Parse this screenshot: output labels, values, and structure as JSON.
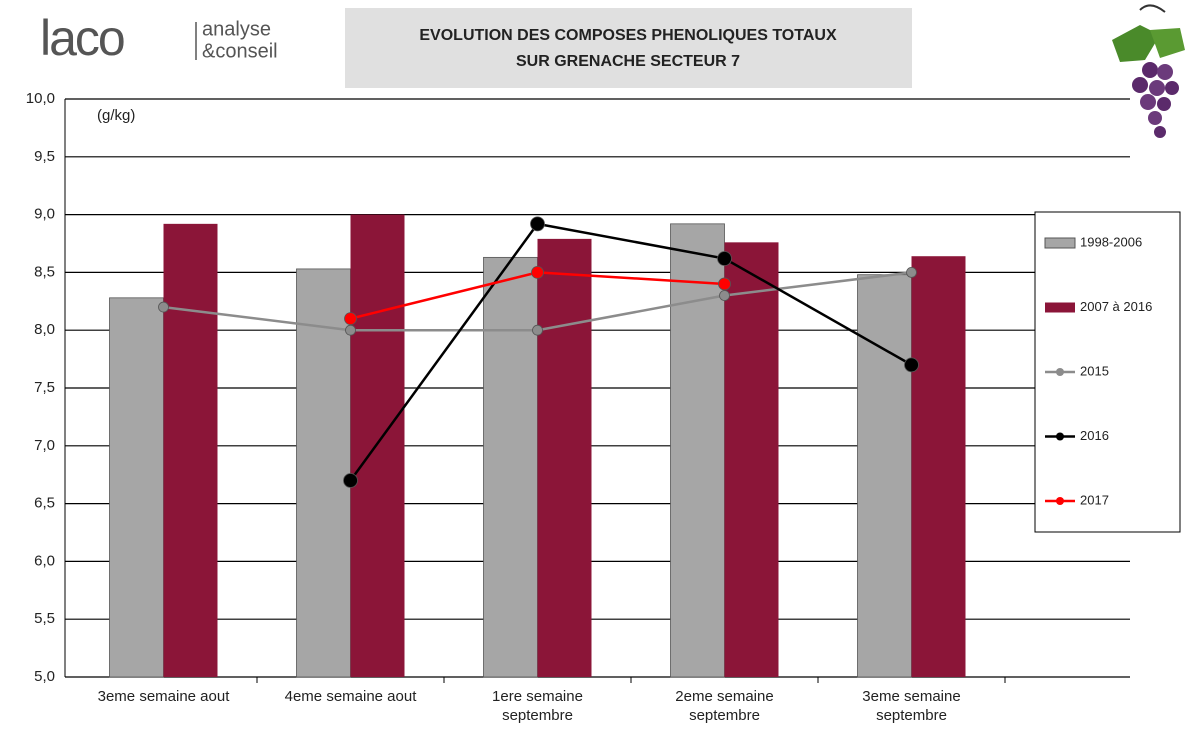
{
  "header": {
    "logo": "laco",
    "logo_line1": "analyse",
    "logo_line2": "&conseil"
  },
  "chart_data": {
    "type": "bar_line",
    "title": [
      "EVOLUTION DES COMPOSES PHENOLIQUES TOTAUX",
      "SUR GRENACHE SECTEUR 7"
    ],
    "y_label": "(g/kg)",
    "categories": [
      "3eme semaine aout",
      "4eme semaine aout",
      "1ere semaine septembre",
      "2eme semaine septembre",
      "3eme semaine septembre"
    ],
    "series": [
      {
        "name": "1998-2006",
        "kind": "bar",
        "color": "#a6a6a6",
        "values": [
          8.28,
          8.53,
          8.63,
          8.92,
          8.48
        ]
      },
      {
        "name": "2007 à 2016",
        "kind": "bar",
        "color": "#8b1538",
        "values": [
          8.92,
          9.0,
          8.79,
          8.76,
          8.64
        ]
      },
      {
        "name": "2015",
        "kind": "line",
        "color": "#8c8c8c",
        "values": [
          8.2,
          8.0,
          8.0,
          8.3,
          8.5
        ]
      },
      {
        "name": "2016",
        "kind": "line",
        "color": "#000000",
        "values": [
          null,
          6.7,
          8.92,
          8.62,
          7.7
        ]
      },
      {
        "name": "2017",
        "kind": "line",
        "color": "#ff0000",
        "values": [
          null,
          8.1,
          8.5,
          8.4,
          null
        ]
      }
    ],
    "ylim": [
      5,
      10
    ],
    "yticks": [
      {
        "value": 5,
        "label": "5,0"
      },
      {
        "value": 5.5,
        "label": "5,5"
      },
      {
        "value": 6,
        "label": "6,0"
      },
      {
        "value": 6.5,
        "label": "6,5"
      },
      {
        "value": 7,
        "label": "7,0"
      },
      {
        "value": 7.5,
        "label": "7,5"
      },
      {
        "value": 8,
        "label": "8,0"
      },
      {
        "value": 8.5,
        "label": "8,5"
      },
      {
        "value": 9,
        "label": "9,0"
      },
      {
        "value": 9.5,
        "label": "9,5"
      },
      {
        "value": 10,
        "label": "10,0"
      }
    ],
    "grid": true,
    "legend": "right"
  }
}
